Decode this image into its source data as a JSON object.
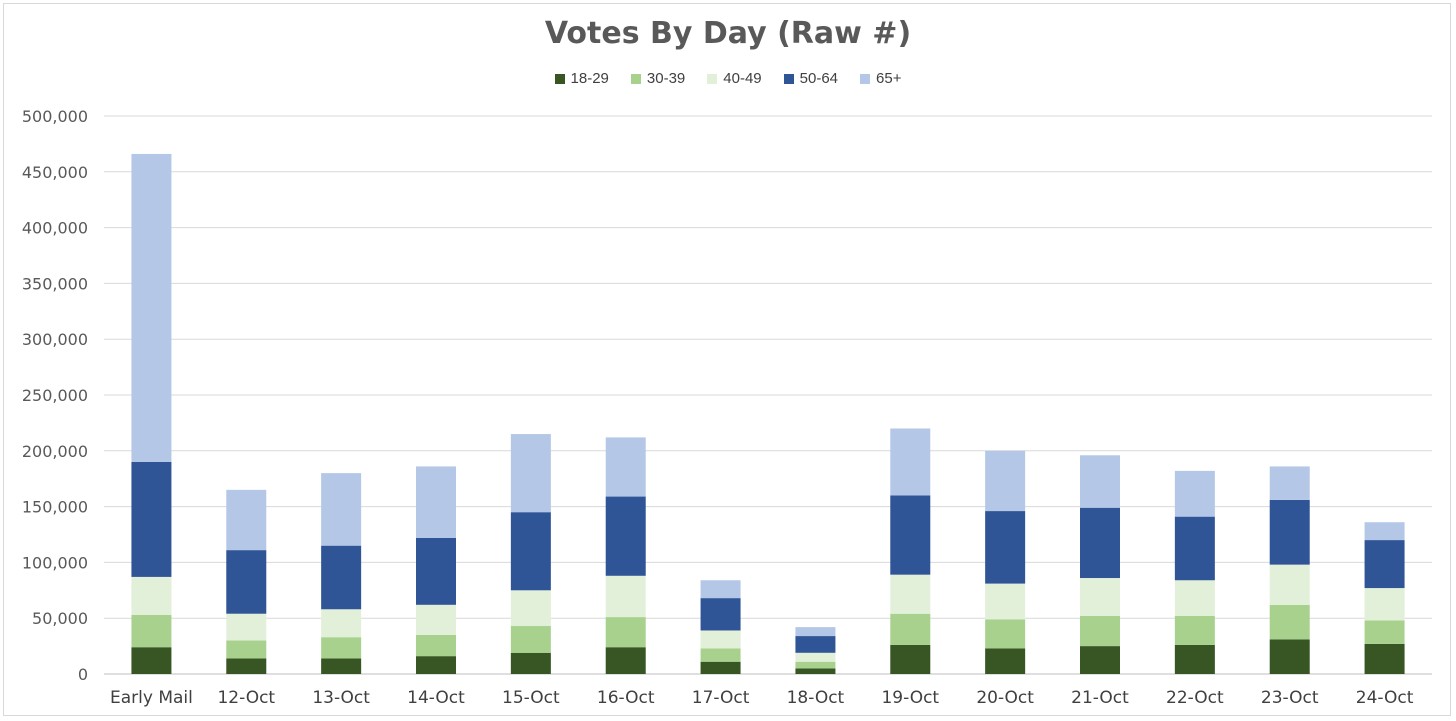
{
  "chart_data": {
    "type": "bar",
    "stacked": true,
    "title": "Votes By Day (Raw #)",
    "xlabel": "",
    "ylabel": "",
    "ylim": [
      0,
      500000
    ],
    "yticks": [
      0,
      50000,
      100000,
      150000,
      200000,
      250000,
      300000,
      350000,
      400000,
      450000,
      500000
    ],
    "ytick_labels": [
      "0",
      "50,000",
      "100,000",
      "150,000",
      "200,000",
      "250,000",
      "300,000",
      "350,000",
      "400,000",
      "450,000",
      "500,000"
    ],
    "grid": true,
    "legend_position": "top-center",
    "categories": [
      "Early Mail",
      "12-Oct",
      "13-Oct",
      "14-Oct",
      "15-Oct",
      "16-Oct",
      "17-Oct",
      "18-Oct",
      "19-Oct",
      "20-Oct",
      "21-Oct",
      "22-Oct",
      "23-Oct",
      "24-Oct"
    ],
    "series": [
      {
        "name": "18-29",
        "color": "#375623",
        "values": [
          24000,
          14000,
          14000,
          16000,
          19000,
          24000,
          11000,
          5000,
          26000,
          23000,
          25000,
          26000,
          31000,
          27000
        ]
      },
      {
        "name": "30-39",
        "color": "#a9d18e",
        "values": [
          29000,
          16000,
          19000,
          19000,
          24000,
          27000,
          12000,
          6000,
          28000,
          26000,
          27000,
          26000,
          31000,
          21000
        ]
      },
      {
        "name": "40-49",
        "color": "#e2f0d9",
        "values": [
          34000,
          24000,
          25000,
          27000,
          32000,
          37000,
          16000,
          8000,
          35000,
          32000,
          34000,
          32000,
          36000,
          29000
        ]
      },
      {
        "name": "50-64",
        "color": "#2f5597",
        "values": [
          103000,
          57000,
          57000,
          60000,
          70000,
          71000,
          29000,
          15000,
          71000,
          65000,
          63000,
          57000,
          58000,
          43000
        ]
      },
      {
        "name": "65+",
        "color": "#b4c7e7",
        "values": [
          276000,
          54000,
          65000,
          64000,
          70000,
          53000,
          16000,
          8000,
          60000,
          54000,
          47000,
          41000,
          30000,
          16000
        ]
      }
    ]
  }
}
